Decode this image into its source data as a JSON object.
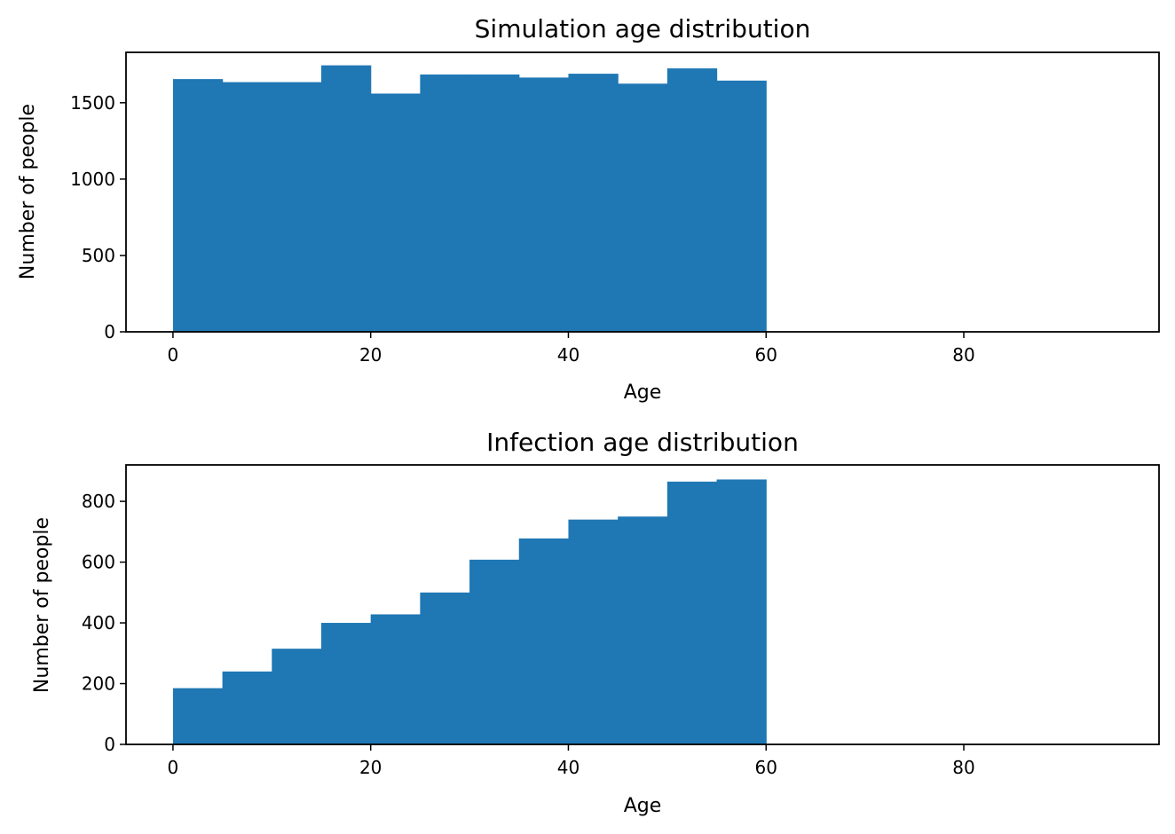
{
  "chart_data": [
    {
      "type": "bar",
      "title": "Simulation age distribution",
      "xlabel": "Age",
      "ylabel": "Number of people",
      "xlim": [
        -4.75,
        99.75
      ],
      "ylim": [
        0,
        1830
      ],
      "xticks": [
        0,
        20,
        40,
        60,
        80
      ],
      "yticks": [
        0,
        500,
        1000,
        1500
      ],
      "bin_edges": [
        0,
        5,
        10,
        15,
        20,
        25,
        30,
        35,
        40,
        45,
        50,
        55,
        60
      ],
      "values": [
        1655,
        1635,
        1635,
        1745,
        1560,
        1685,
        1685,
        1665,
        1690,
        1625,
        1725,
        1645
      ],
      "bar_color": "#1f77b4",
      "grid": false
    },
    {
      "type": "bar",
      "title": "Infection age distribution",
      "xlabel": "Age",
      "ylabel": "Number of people",
      "xlim": [
        -4.75,
        99.75
      ],
      "ylim": [
        0,
        920
      ],
      "xticks": [
        0,
        20,
        40,
        60,
        80
      ],
      "yticks": [
        0,
        200,
        400,
        600,
        800
      ],
      "bin_edges": [
        0,
        5,
        10,
        15,
        20,
        25,
        30,
        35,
        40,
        45,
        50,
        55,
        60
      ],
      "values": [
        185,
        240,
        315,
        400,
        428,
        500,
        608,
        678,
        740,
        750,
        865,
        872
      ],
      "bar_color": "#1f77b4",
      "grid": false
    }
  ]
}
